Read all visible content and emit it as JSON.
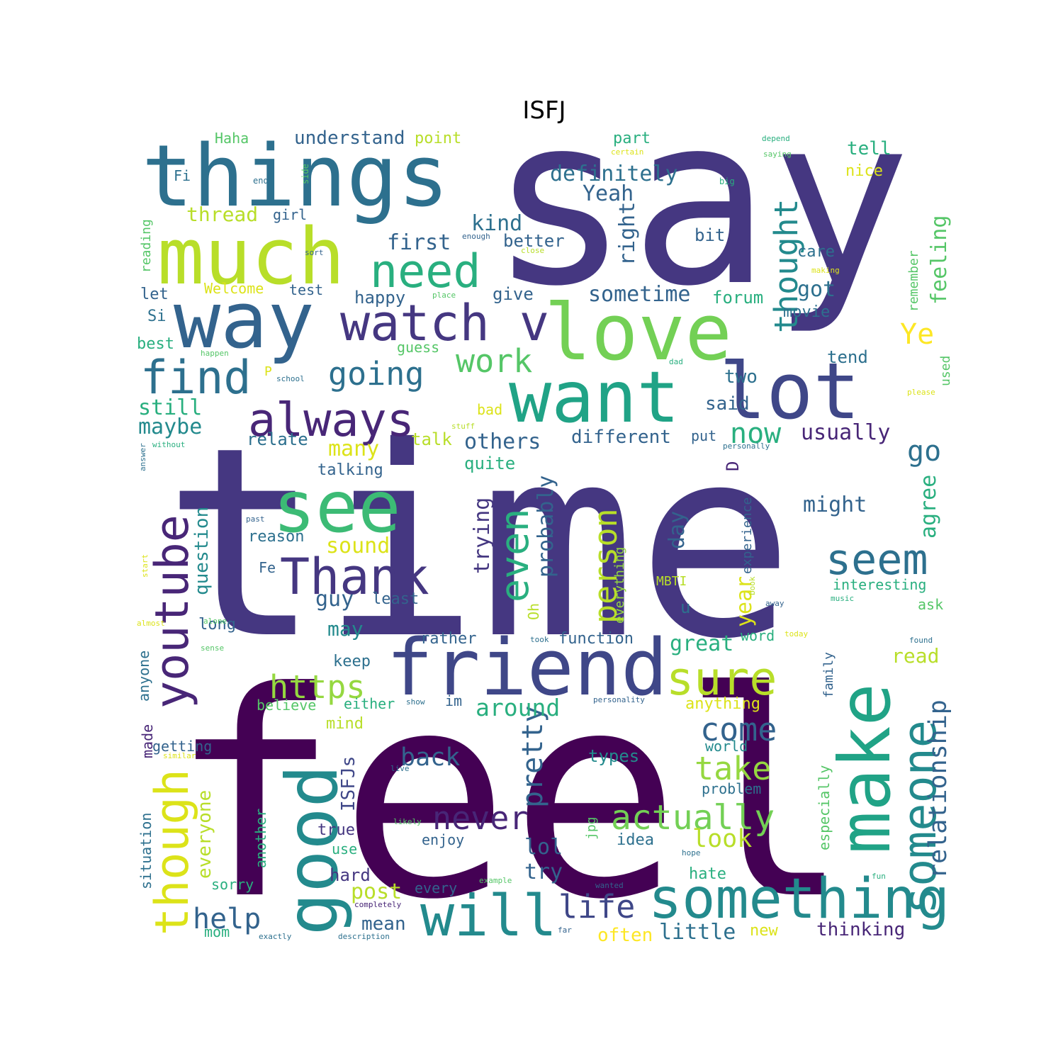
{
  "title": "ISFJ",
  "palette": [
    "#440154",
    "#482677",
    "#453781",
    "#3f4788",
    "#33638d",
    "#2d708e",
    "#238a8d",
    "#20a386",
    "#29af7f",
    "#3cbb75",
    "#55c667",
    "#73d055",
    "#95d840",
    "#b8de29",
    "#dce319",
    "#fde725"
  ],
  "words": [
    {
      "text": "say",
      "color": "#453781"
    },
    {
      "text": "time",
      "color": "#453781"
    },
    {
      "text": "feel",
      "color": "#440154"
    },
    {
      "text": "things",
      "color": "#2d708e"
    },
    {
      "text": "much",
      "color": "#b8de29"
    },
    {
      "text": "way",
      "color": "#33638d"
    },
    {
      "text": "love",
      "color": "#73d055"
    },
    {
      "text": "want",
      "color": "#20a386"
    },
    {
      "text": "lot",
      "color": "#3f4788"
    },
    {
      "text": "see",
      "color": "#3cbb75"
    },
    {
      "text": "friend",
      "color": "#3f4788"
    },
    {
      "text": "make",
      "color": "#20a386"
    },
    {
      "text": "good",
      "color": "#238a8d"
    },
    {
      "text": "something",
      "color": "#238a8d"
    },
    {
      "text": "will",
      "color": "#238a8d"
    },
    {
      "text": "Thank",
      "color": "#453781"
    },
    {
      "text": "need",
      "color": "#29af7f"
    },
    {
      "text": "watch v",
      "color": "#453781"
    },
    {
      "text": "always",
      "color": "#482677"
    },
    {
      "text": "find",
      "color": "#2d708e"
    },
    {
      "text": "youtube",
      "color": "#482677"
    },
    {
      "text": "though",
      "color": "#dce319"
    },
    {
      "text": "sure",
      "color": "#b8de29"
    },
    {
      "text": "someone",
      "color": "#238a8d"
    },
    {
      "text": "even",
      "color": "#29af7f"
    },
    {
      "text": "seem",
      "color": "#2d708e"
    },
    {
      "text": "going",
      "color": "#2d708e"
    },
    {
      "text": "https",
      "color": "#95d840"
    },
    {
      "text": "actually",
      "color": "#73d055"
    },
    {
      "text": "never",
      "color": "#482677"
    },
    {
      "text": "life",
      "color": "#3f4788"
    },
    {
      "text": "now",
      "color": "#29af7f"
    },
    {
      "text": "work",
      "color": "#55c667"
    },
    {
      "text": "take",
      "color": "#95d840"
    },
    {
      "text": "come",
      "color": "#33638d"
    },
    {
      "text": "person",
      "color": "#b8de29"
    },
    {
      "text": "thought",
      "color": "#238a8d"
    },
    {
      "text": "relationship",
      "color": "#33638d"
    },
    {
      "text": "help",
      "color": "#33638d"
    },
    {
      "text": "pretty",
      "color": "#33638d"
    },
    {
      "text": "go",
      "color": "#2d708e"
    },
    {
      "text": "Ye",
      "color": "#fde725"
    },
    {
      "text": "back",
      "color": "#33638d"
    },
    {
      "text": "look",
      "color": "#b8de29"
    },
    {
      "text": "around",
      "color": "#29af7f"
    },
    {
      "text": "definitely",
      "color": "#2d708e"
    },
    {
      "text": "first",
      "color": "#33638d"
    },
    {
      "text": "kind",
      "color": "#2d708e"
    },
    {
      "text": "right",
      "color": "#33638d"
    },
    {
      "text": "feeling",
      "color": "#55c667"
    },
    {
      "text": "Yeah",
      "color": "#33638d"
    },
    {
      "text": "got",
      "color": "#2d708e"
    },
    {
      "text": "sometime",
      "color": "#33638d"
    },
    {
      "text": "might",
      "color": "#33638d"
    },
    {
      "text": "usually",
      "color": "#482677"
    },
    {
      "text": "others",
      "color": "#33638d"
    },
    {
      "text": "sound",
      "color": "#dce319"
    },
    {
      "text": "still",
      "color": "#29af7f"
    },
    {
      "text": "maybe",
      "color": "#238a8d"
    },
    {
      "text": "many",
      "color": "#dce319"
    },
    {
      "text": "probably",
      "color": "#33638d"
    },
    {
      "text": "trying",
      "color": "#453781"
    },
    {
      "text": "agree",
      "color": "#29af7f"
    },
    {
      "text": "day",
      "color": "#33638d"
    },
    {
      "text": "year",
      "color": "#dce319"
    },
    {
      "text": "great",
      "color": "#29af7f"
    },
    {
      "text": "guy",
      "color": "#33638d"
    },
    {
      "text": "question",
      "color": "#238a8d"
    },
    {
      "text": "everyone",
      "color": "#b8de29"
    },
    {
      "text": "ISFJs",
      "color": "#3f4788"
    },
    {
      "text": "lol",
      "color": "#33638d"
    },
    {
      "text": "try",
      "color": "#33638d"
    },
    {
      "text": "mean",
      "color": "#33638d"
    },
    {
      "text": "post",
      "color": "#b8de29"
    },
    {
      "text": "little",
      "color": "#2d708e"
    },
    {
      "text": "often",
      "color": "#fde725"
    },
    {
      "text": "thinking",
      "color": "#482677"
    },
    {
      "text": "two",
      "color": "#2d708e"
    },
    {
      "text": "said",
      "color": "#33638d"
    },
    {
      "text": "different",
      "color": "#33638d"
    },
    {
      "text": "thread",
      "color": "#b8de29"
    },
    {
      "text": "understand",
      "color": "#33638d"
    },
    {
      "text": "tell",
      "color": "#29af7f"
    },
    {
      "text": "nice",
      "color": "#dce319"
    },
    {
      "text": "better",
      "color": "#33638d"
    },
    {
      "text": "bit",
      "color": "#33638d"
    },
    {
      "text": "care",
      "color": "#2d708e"
    },
    {
      "text": "happy",
      "color": "#33638d"
    },
    {
      "text": "give",
      "color": "#33638d"
    },
    {
      "text": "forum",
      "color": "#29af7f"
    },
    {
      "text": "movie",
      "color": "#2d708e"
    },
    {
      "text": "talk",
      "color": "#b8de29"
    },
    {
      "text": "quite",
      "color": "#29af7f"
    },
    {
      "text": "relate",
      "color": "#2d708e"
    },
    {
      "text": "talking",
      "color": "#33638d"
    },
    {
      "text": "tend",
      "color": "#2d708e"
    },
    {
      "text": "reason",
      "color": "#2d708e"
    },
    {
      "text": "least",
      "color": "#33638d"
    },
    {
      "text": "may",
      "color": "#238a8d"
    },
    {
      "text": "long",
      "color": "#33638d"
    },
    {
      "text": "keep",
      "color": "#2d708e"
    },
    {
      "text": "read",
      "color": "#b8de29"
    },
    {
      "text": "function",
      "color": "#33638d"
    },
    {
      "text": "rather",
      "color": "#33638d"
    },
    {
      "text": "interesting",
      "color": "#29af7f"
    },
    {
      "text": "ask",
      "color": "#55c667"
    },
    {
      "text": "world",
      "color": "#238a8d"
    },
    {
      "text": "types",
      "color": "#238a8d"
    },
    {
      "text": "anything",
      "color": "#dce319"
    },
    {
      "text": "problem",
      "color": "#2d708e"
    },
    {
      "text": "especially",
      "color": "#55c667"
    },
    {
      "text": "idea",
      "color": "#2d708e"
    },
    {
      "text": "hate",
      "color": "#29af7f"
    },
    {
      "text": "new",
      "color": "#dce319"
    },
    {
      "text": "enjoy",
      "color": "#33638d"
    },
    {
      "text": "true",
      "color": "#453781"
    },
    {
      "text": "use",
      "color": "#29af7f"
    },
    {
      "text": "hard",
      "color": "#453781"
    },
    {
      "text": "every",
      "color": "#33638d"
    },
    {
      "text": "sorry",
      "color": "#29af7f"
    },
    {
      "text": "mom",
      "color": "#29af7f"
    },
    {
      "text": "im",
      "color": "#33638d"
    },
    {
      "text": "either",
      "color": "#29af7f"
    },
    {
      "text": "believe",
      "color": "#55c667"
    },
    {
      "text": "mind",
      "color": "#b8de29"
    },
    {
      "text": "getting",
      "color": "#33638d"
    },
    {
      "text": "made",
      "color": "#482677"
    },
    {
      "text": "anyone",
      "color": "#2d708e"
    },
    {
      "text": "situation",
      "color": "#2d708e"
    },
    {
      "text": "another",
      "color": "#29af7f"
    },
    {
      "text": "best",
      "color": "#29af7f"
    },
    {
      "text": "let",
      "color": "#33638d"
    },
    {
      "text": "Si",
      "color": "#2d708e"
    },
    {
      "text": "reading",
      "color": "#55c667"
    },
    {
      "text": "Fi",
      "color": "#2d708e"
    },
    {
      "text": "Haha",
      "color": "#55c667"
    },
    {
      "text": "point",
      "color": "#b8de29"
    },
    {
      "text": "part",
      "color": "#29af7f"
    },
    {
      "text": "girl",
      "color": "#33638d"
    },
    {
      "text": "Welcome",
      "color": "#dce319"
    },
    {
      "text": "test",
      "color": "#33638d"
    },
    {
      "text": "guess",
      "color": "#55c667"
    },
    {
      "text": "bad",
      "color": "#dce319"
    },
    {
      "text": "put",
      "color": "#33638d"
    },
    {
      "text": "D",
      "color": "#482677"
    },
    {
      "text": "experience",
      "color": "#33638d"
    },
    {
      "text": "u",
      "color": "#2d708e"
    },
    {
      "text": "Oh",
      "color": "#b8de29"
    },
    {
      "text": "everything",
      "color": "#95d840"
    },
    {
      "text": "MBTI",
      "color": "#b8de29"
    },
    {
      "text": "Fe",
      "color": "#33638d"
    },
    {
      "text": "word",
      "color": "#29af7f"
    },
    {
      "text": "jpg",
      "color": "#55c667"
    },
    {
      "text": "family",
      "color": "#33638d"
    },
    {
      "text": "remember",
      "color": "#55c667"
    },
    {
      "text": "used",
      "color": "#55c667"
    },
    {
      "text": "P",
      "color": "#dce319"
    },
    {
      "text": "end",
      "color": "#2d708e"
    },
    {
      "text": "side",
      "color": "#55c667"
    },
    {
      "text": "big",
      "color": "#29af7f"
    },
    {
      "text": "enough",
      "color": "#33638d"
    },
    {
      "text": "sort",
      "color": "#33638d"
    },
    {
      "text": "close",
      "color": "#b8de29"
    },
    {
      "text": "place",
      "color": "#55c667"
    },
    {
      "text": "making",
      "color": "#dce319"
    },
    {
      "text": "depend",
      "color": "#29af7f"
    },
    {
      "text": "saying",
      "color": "#55c667"
    },
    {
      "text": "certain",
      "color": "#dce319"
    },
    {
      "text": "happen",
      "color": "#55c667"
    },
    {
      "text": "school",
      "color": "#2d708e"
    },
    {
      "text": "dad",
      "color": "#29af7f"
    },
    {
      "text": "please",
      "color": "#dce319"
    },
    {
      "text": "stuff",
      "color": "#b8de29"
    },
    {
      "text": "without",
      "color": "#29af7f"
    },
    {
      "text": "answer",
      "color": "#2d708e"
    },
    {
      "text": "personally",
      "color": "#2d708e"
    },
    {
      "text": "past",
      "color": "#33638d"
    },
    {
      "text": "start",
      "color": "#dce319"
    },
    {
      "text": "book",
      "color": "#b8de29"
    },
    {
      "text": "away",
      "color": "#33638d"
    },
    {
      "text": "music",
      "color": "#29af7f"
    },
    {
      "text": "almost",
      "color": "#dce319"
    },
    {
      "text": "alone",
      "color": "#55c667"
    },
    {
      "text": "sense",
      "color": "#55c667"
    },
    {
      "text": "took",
      "color": "#2d708e"
    },
    {
      "text": "today",
      "color": "#dce319"
    },
    {
      "text": "found",
      "color": "#2d708e"
    },
    {
      "text": "show",
      "color": "#2d708e"
    },
    {
      "text": "personality",
      "color": "#33638d"
    },
    {
      "text": "similar",
      "color": "#dce319"
    },
    {
      "text": "live",
      "color": "#2d708e"
    },
    {
      "text": "likely",
      "color": "#55c667"
    },
    {
      "text": "hope",
      "color": "#2d708e"
    },
    {
      "text": "example",
      "color": "#55c667"
    },
    {
      "text": "wanted",
      "color": "#33638d"
    },
    {
      "text": "fun",
      "color": "#29af7f"
    },
    {
      "text": "completely",
      "color": "#482677"
    },
    {
      "text": "far",
      "color": "#33638d"
    },
    {
      "text": "exactly",
      "color": "#2d708e"
    },
    {
      "text": "description",
      "color": "#2d708e"
    }
  ]
}
